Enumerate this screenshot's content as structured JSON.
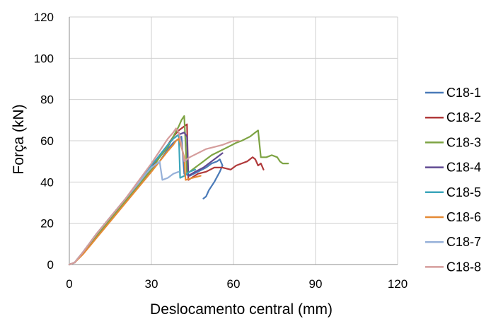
{
  "chart_data": {
    "type": "line",
    "title": "",
    "xlabel": "Deslocamento central (mm)",
    "ylabel": "Força (kN)",
    "xlim": [
      0,
      120
    ],
    "ylim": [
      0,
      120
    ],
    "xticks": [
      "0",
      "30",
      "60",
      "90",
      "120"
    ],
    "yticks": [
      "0",
      "20",
      "40",
      "60",
      "80",
      "100",
      "120"
    ],
    "grid": true,
    "legend_position": "right",
    "series": [
      {
        "name": "C18-1",
        "color": "#4a7ab8",
        "points": [
          [
            0,
            0
          ],
          [
            2,
            1
          ],
          [
            5,
            6
          ],
          [
            10,
            14
          ],
          [
            15,
            22
          ],
          [
            20,
            30
          ],
          [
            25,
            38
          ],
          [
            30,
            46
          ],
          [
            33,
            50
          ],
          [
            36,
            56
          ],
          [
            38,
            59
          ],
          [
            40,
            61
          ],
          [
            41,
            62
          ],
          [
            42,
            44
          ],
          [
            44,
            43
          ],
          [
            47,
            45
          ],
          [
            50,
            47
          ],
          [
            52,
            49
          ],
          [
            54,
            50
          ],
          [
            55,
            51
          ],
          [
            56,
            48
          ],
          [
            55,
            45
          ],
          [
            53,
            40
          ],
          [
            51,
            36
          ],
          [
            50,
            33
          ],
          [
            49,
            32
          ]
        ]
      },
      {
        "name": "C18-2",
        "color": "#b0393a",
        "points": [
          [
            0,
            0
          ],
          [
            2,
            1
          ],
          [
            5,
            6
          ],
          [
            10,
            15
          ],
          [
            15,
            23
          ],
          [
            20,
            31
          ],
          [
            25,
            39
          ],
          [
            30,
            47
          ],
          [
            33,
            52
          ],
          [
            36,
            58
          ],
          [
            38,
            62
          ],
          [
            40,
            65
          ],
          [
            41,
            66
          ],
          [
            42,
            67
          ],
          [
            43,
            68
          ],
          [
            43.5,
            41
          ],
          [
            47,
            44
          ],
          [
            50,
            45
          ],
          [
            53,
            47
          ],
          [
            56,
            47
          ],
          [
            59,
            46
          ],
          [
            61,
            48
          ],
          [
            63,
            49
          ],
          [
            65,
            50
          ],
          [
            67,
            52
          ],
          [
            68,
            51
          ],
          [
            69,
            48
          ],
          [
            70,
            49
          ],
          [
            71,
            46
          ]
        ]
      },
      {
        "name": "C18-3",
        "color": "#7da343",
        "points": [
          [
            0,
            0
          ],
          [
            2,
            1
          ],
          [
            5,
            6
          ],
          [
            10,
            14
          ],
          [
            15,
            22
          ],
          [
            20,
            30
          ],
          [
            25,
            38
          ],
          [
            30,
            46
          ],
          [
            33,
            52
          ],
          [
            36,
            57
          ],
          [
            38,
            62
          ],
          [
            40,
            67
          ],
          [
            41,
            70
          ],
          [
            42,
            72
          ],
          [
            43,
            44
          ],
          [
            45,
            46
          ],
          [
            48,
            49
          ],
          [
            52,
            53
          ],
          [
            55,
            55
          ],
          [
            58,
            57
          ],
          [
            61,
            59
          ],
          [
            63,
            60
          ],
          [
            66,
            62
          ],
          [
            68,
            64
          ],
          [
            69,
            65
          ],
          [
            70,
            52
          ],
          [
            72,
            52
          ],
          [
            74,
            53
          ],
          [
            76,
            52
          ],
          [
            77,
            50
          ],
          [
            78,
            49
          ],
          [
            80,
            49
          ]
        ]
      },
      {
        "name": "C18-4",
        "color": "#614a92",
        "points": [
          [
            0,
            0
          ],
          [
            2,
            1
          ],
          [
            5,
            6
          ],
          [
            10,
            15
          ],
          [
            15,
            23
          ],
          [
            20,
            31
          ],
          [
            25,
            39
          ],
          [
            30,
            48
          ],
          [
            33,
            53
          ],
          [
            36,
            58
          ],
          [
            38,
            61
          ],
          [
            40,
            63
          ],
          [
            42,
            64
          ],
          [
            43,
            62
          ],
          [
            43.5,
            43
          ],
          [
            46,
            45
          ],
          [
            49,
            47
          ],
          [
            51,
            49
          ],
          [
            53,
            51
          ],
          [
            55,
            53
          ],
          [
            56,
            54
          ]
        ]
      },
      {
        "name": "C18-5",
        "color": "#3ca6bb",
        "points": [
          [
            0,
            0
          ],
          [
            2,
            1
          ],
          [
            5,
            6
          ],
          [
            10,
            15
          ],
          [
            15,
            23
          ],
          [
            20,
            31
          ],
          [
            25,
            39
          ],
          [
            30,
            48
          ],
          [
            33,
            53
          ],
          [
            36,
            58
          ],
          [
            38,
            61
          ],
          [
            40,
            63
          ],
          [
            40.5,
            42
          ],
          [
            42,
            43
          ],
          [
            44,
            45
          ],
          [
            46,
            46
          ]
        ]
      },
      {
        "name": "C18-6",
        "color": "#e58a35",
        "points": [
          [
            0,
            0
          ],
          [
            2,
            1
          ],
          [
            5,
            5
          ],
          [
            10,
            13
          ],
          [
            15,
            21
          ],
          [
            20,
            29
          ],
          [
            25,
            37
          ],
          [
            30,
            45
          ],
          [
            33,
            50
          ],
          [
            36,
            55
          ],
          [
            38,
            58
          ],
          [
            39,
            60
          ],
          [
            40,
            61
          ],
          [
            41,
            57
          ],
          [
            42,
            52
          ],
          [
            42.5,
            41
          ],
          [
            45,
            42
          ],
          [
            48,
            43
          ]
        ]
      },
      {
        "name": "C18-7",
        "color": "#97b1d9",
        "points": [
          [
            0,
            0
          ],
          [
            2,
            1
          ],
          [
            5,
            6
          ],
          [
            10,
            15
          ],
          [
            15,
            23
          ],
          [
            20,
            31
          ],
          [
            25,
            39
          ],
          [
            28,
            44
          ],
          [
            30,
            47
          ],
          [
            32,
            49
          ],
          [
            33,
            50
          ],
          [
            34,
            41
          ],
          [
            36,
            42
          ],
          [
            38,
            44
          ],
          [
            40,
            45
          ]
        ]
      },
      {
        "name": "C18-8",
        "color": "#d59d9c",
        "points": [
          [
            0,
            0
          ],
          [
            2,
            1
          ],
          [
            5,
            6
          ],
          [
            10,
            15
          ],
          [
            15,
            23
          ],
          [
            20,
            31
          ],
          [
            25,
            40
          ],
          [
            30,
            49
          ],
          [
            33,
            55
          ],
          [
            36,
            61
          ],
          [
            38,
            64
          ],
          [
            39,
            66
          ],
          [
            40,
            64
          ],
          [
            41,
            58
          ],
          [
            42,
            50
          ],
          [
            44,
            52
          ],
          [
            47,
            54
          ],
          [
            50,
            56
          ],
          [
            53,
            57
          ],
          [
            56,
            58
          ],
          [
            58,
            59
          ],
          [
            60,
            60
          ],
          [
            62,
            60
          ]
        ]
      }
    ]
  }
}
